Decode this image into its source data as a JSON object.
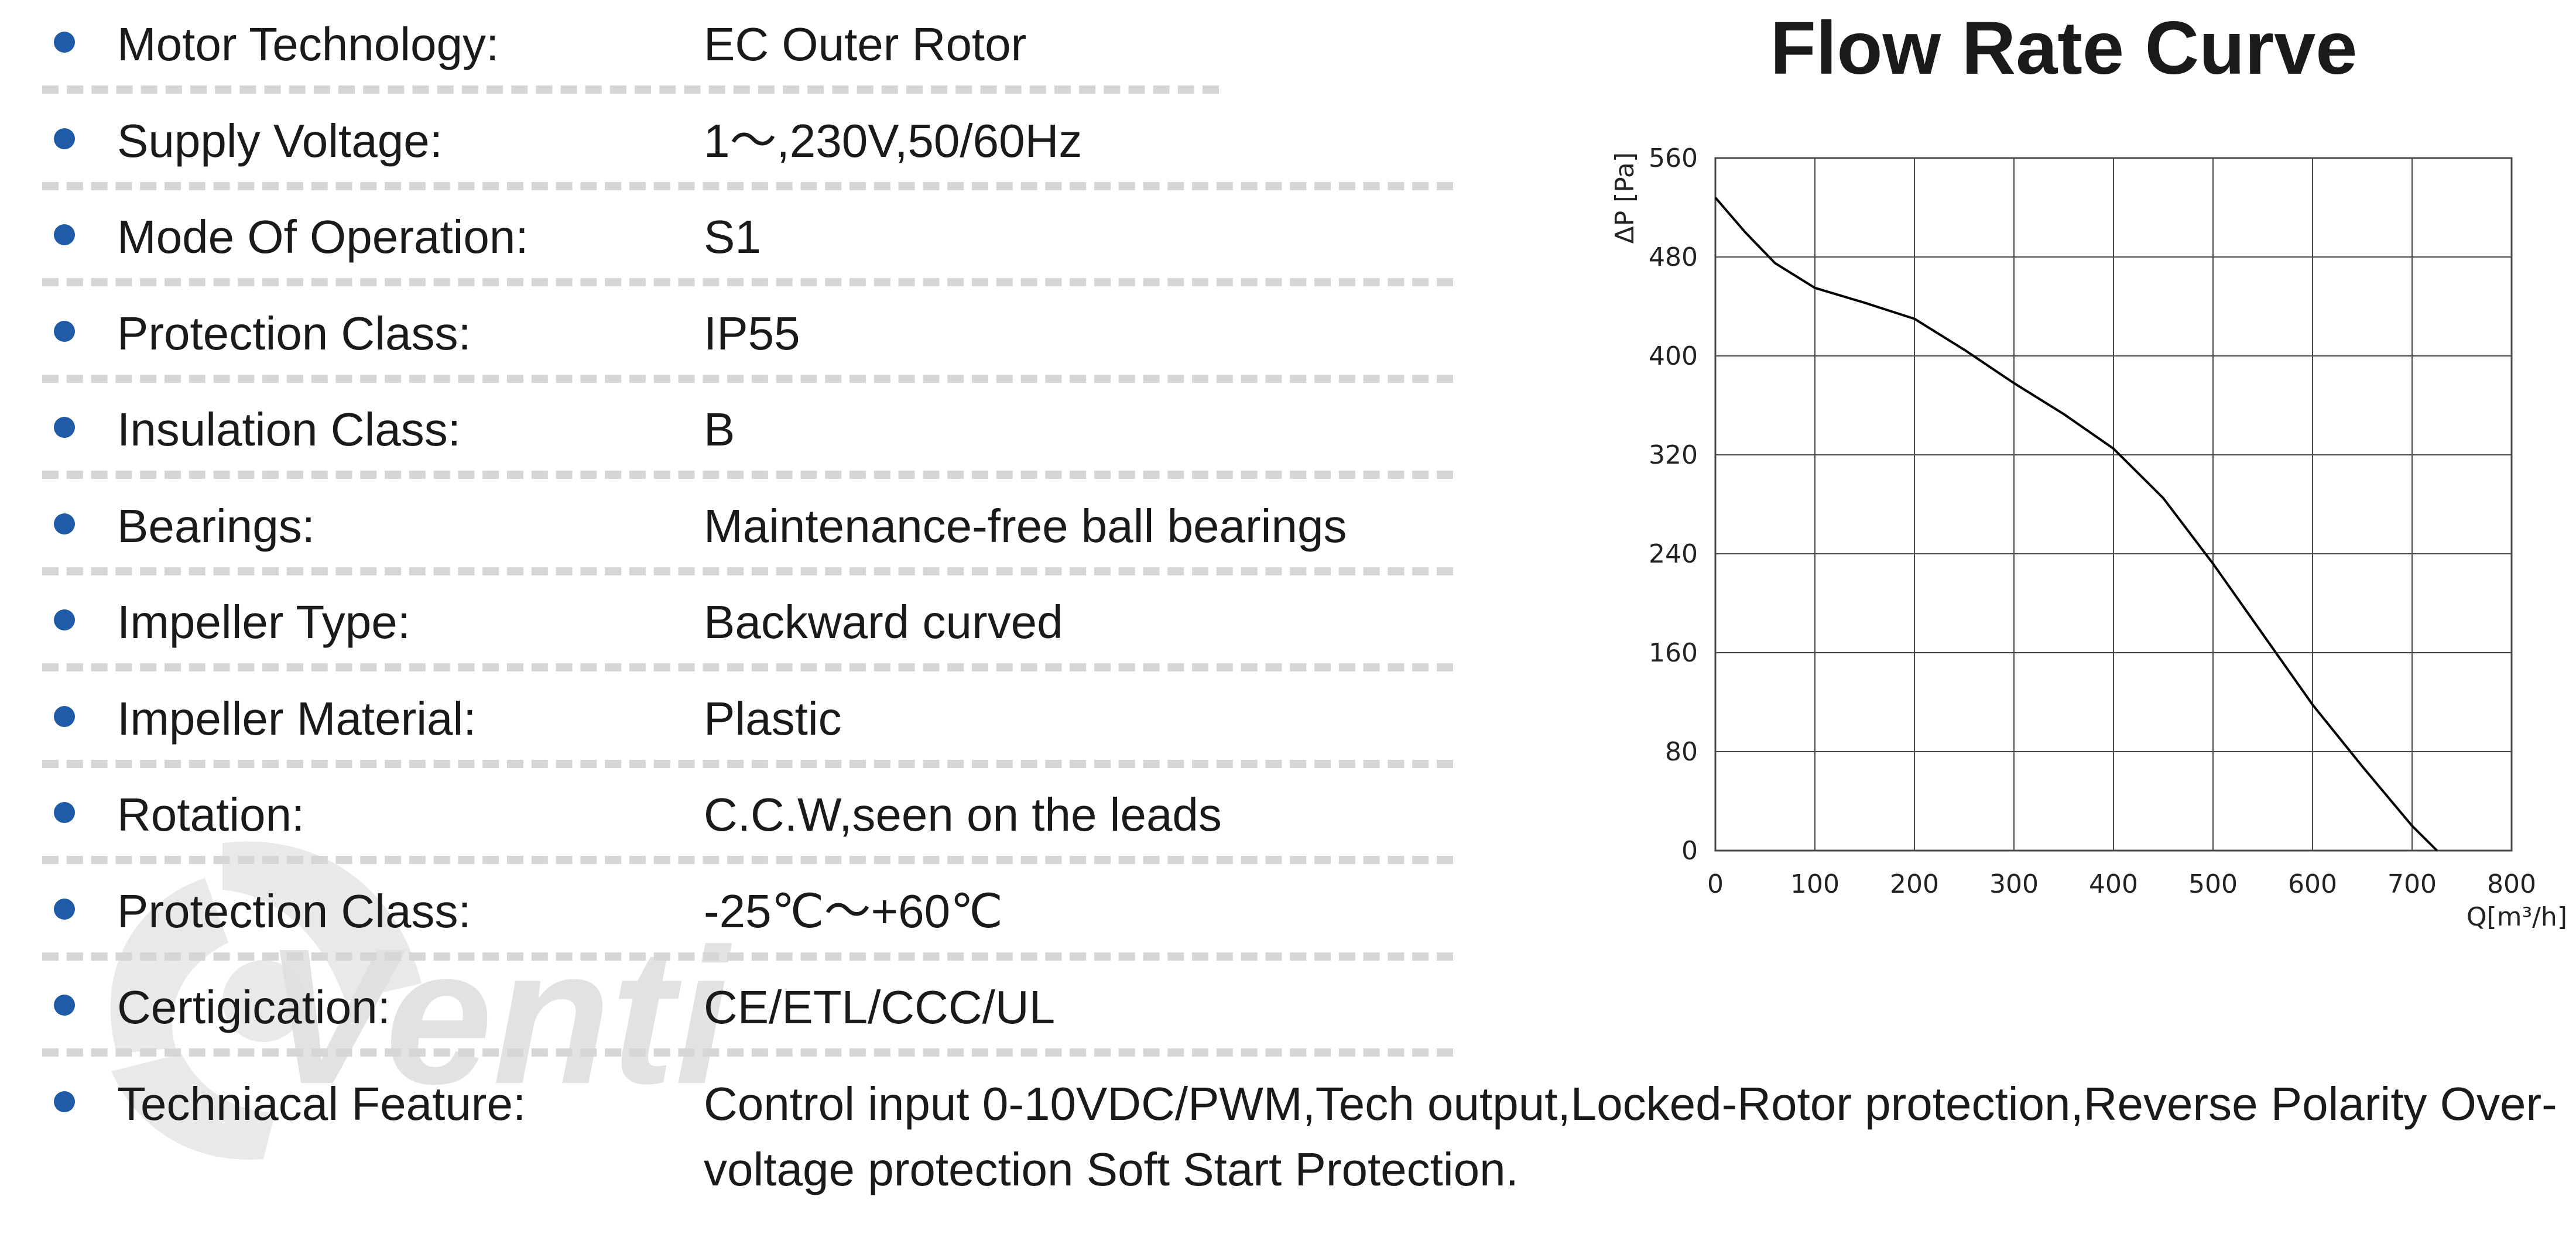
{
  "specs": [
    {
      "label": "Motor Technology:",
      "value": "EC Outer Rotor"
    },
    {
      "label": "Supply Voltage:",
      "value": "1～,230V,50/60Hz"
    },
    {
      "label": "Mode Of Operation:",
      "value": "S1"
    },
    {
      "label": "Protection Class:",
      "value": "IP55"
    },
    {
      "label": "Insulation Class:",
      "value": "B"
    },
    {
      "label": "Bearings:",
      "value": "Maintenance-free ball bearings"
    },
    {
      "label": "Impeller Type:",
      "value": "Backward curved"
    },
    {
      "label": "Impeller Material:",
      "value": "Plastic"
    },
    {
      "label": "Rotation:",
      "value": "C.C.W,seen on the leads"
    },
    {
      "label": "Protection Class:",
      "value": "-25℃～+60℃"
    },
    {
      "label": "Certigication:",
      "value": "CE/ETL/CCC/UL"
    },
    {
      "label": "Techniacal Feature:",
      "value": "Control input 0-10VDC/PWM,Tech output,Locked-Rotor protection,Reverse Polarity Over-voltage protection Soft Start Protection."
    }
  ],
  "watermark": {
    "text": "Venti"
  },
  "colors": {
    "bullet": "#1f5ba6",
    "text": "#1a1a1a",
    "separator": "#d6d6d6",
    "grid": "#4a4a4a",
    "curve": "#000000"
  },
  "chart_title": "Flow Rate Curve",
  "chart_data": {
    "type": "line",
    "title": "Flow Rate Curve",
    "xlabel": "Q[m³/h]",
    "ylabel": "ΔP [Pa]",
    "xlim": [
      0,
      800
    ],
    "ylim": [
      0,
      560
    ],
    "x_ticks": [
      0,
      100,
      200,
      300,
      400,
      500,
      600,
      700,
      800
    ],
    "y_ticks": [
      0,
      80,
      160,
      240,
      320,
      400,
      480,
      560
    ],
    "grid": true,
    "series": [
      {
        "x": [
          0,
          30,
          60,
          100,
          150,
          200,
          250,
          300,
          350,
          400,
          450,
          500,
          550,
          600,
          650,
          700,
          725
        ],
        "y": [
          528,
          500,
          475,
          455,
          443,
          430,
          405,
          378,
          353,
          325,
          285,
          232,
          175,
          118,
          68,
          20,
          0
        ]
      }
    ]
  }
}
